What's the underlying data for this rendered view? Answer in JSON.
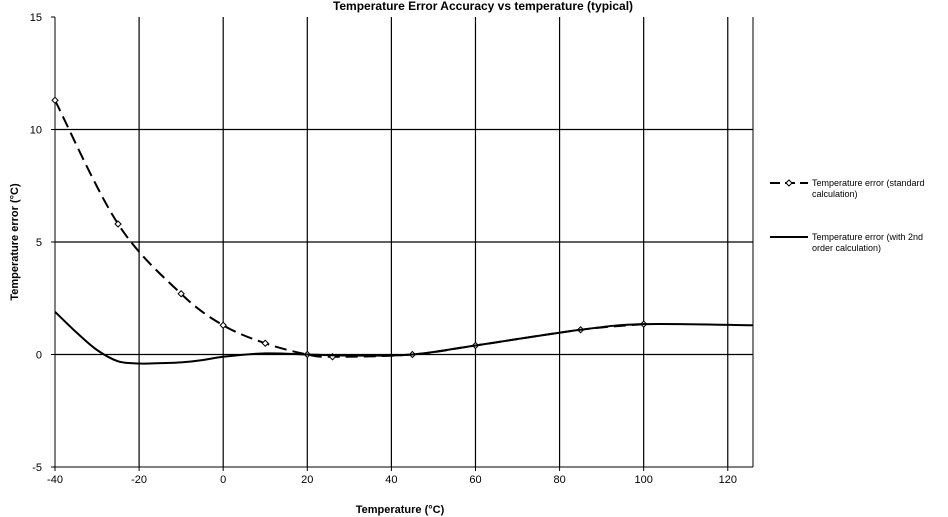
{
  "chart_data": {
    "type": "line",
    "title": "Temperature Error Accuracy vs temperature (typical)",
    "xlabel": "Temperature (°C)",
    "ylabel": "Temperature error (°C)",
    "xlim": [
      -40,
      126
    ],
    "ylim": [
      -5,
      15
    ],
    "xticks": [
      -40,
      -20,
      0,
      20,
      40,
      60,
      80,
      100,
      120
    ],
    "yticks": [
      -5,
      0,
      5,
      10,
      15
    ],
    "grid": true,
    "legend_position": "right",
    "series": [
      {
        "name_lines": [
          "Temperature error (standard",
          "calculation)"
        ],
        "style": "dashed",
        "marker": "diamond",
        "color": "#000000",
        "x": [
          -40,
          -25,
          -10,
          0,
          10,
          20,
          26,
          45,
          60,
          85,
          100
        ],
        "y": [
          11.3,
          5.8,
          2.7,
          1.3,
          0.5,
          0.0,
          -0.1,
          0.0,
          0.4,
          1.1,
          1.35
        ]
      },
      {
        "name_lines": [
          "Temperature error (with 2nd",
          "order calculation)"
        ],
        "style": "solid",
        "marker": "none",
        "color": "#000000",
        "x": [
          -40,
          -35,
          -30,
          -25,
          -20,
          -15,
          -10,
          -5,
          0,
          10,
          20,
          30,
          45,
          60,
          85,
          100,
          126
        ],
        "y": [
          1.9,
          1.0,
          0.2,
          -0.3,
          -0.4,
          -0.38,
          -0.35,
          -0.25,
          -0.1,
          0.05,
          0.0,
          -0.05,
          0.0,
          0.4,
          1.1,
          1.35,
          1.3
        ]
      }
    ]
  }
}
